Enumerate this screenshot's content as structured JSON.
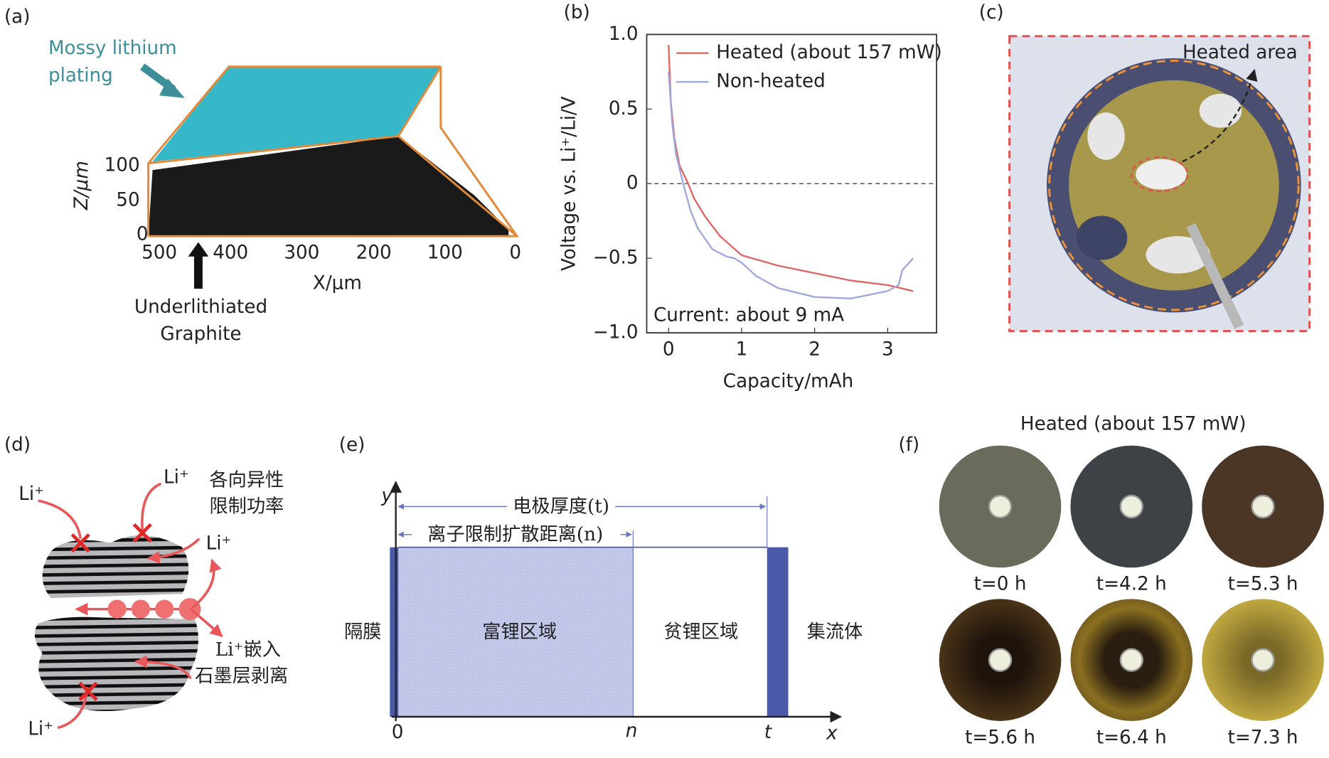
{
  "panel_a": {
    "label": "(a)",
    "annotation": [
      "Mossy lithium",
      "plating"
    ],
    "z_label": "Z/μm",
    "z_ticks": [
      100,
      50,
      0
    ],
    "x_ticks": [
      500,
      400,
      300,
      200,
      100,
      0
    ],
    "x_label": "X/μm",
    "arrow_label": [
      "Underlithiated",
      "Graphite"
    ]
  },
  "chart_data": {
    "type": "line",
    "panel_label": "(b)",
    "x_label": "Capacity/mAh",
    "y_label": "Voltage vs. Li⁺/Li/V",
    "annotation": "Current: about 9 mA",
    "xlim": [
      -0.3,
      3.67
    ],
    "ylim": [
      -1,
      1
    ],
    "xticks": [
      0,
      1,
      2,
      3
    ],
    "yticks": [
      {
        "value": 1,
        "label": "1.0"
      },
      {
        "value": 0.5,
        "label": "0.5"
      },
      0,
      {
        "value": -0.5,
        "label": "−0.5"
      },
      {
        "value": -1,
        "label": "−1.0"
      }
    ],
    "reference_line": 0,
    "legend": "upper right",
    "series": [
      {
        "name": "Heated (about 157 mW)",
        "color": "#e06666",
        "x": [
          0,
          0.03,
          0.08,
          0.15,
          0.25,
          0.35,
          0.5,
          0.7,
          1.0,
          1.5,
          2.0,
          2.5,
          3.0,
          3.35
        ],
        "values": [
          0.93,
          0.55,
          0.3,
          0.12,
          0.02,
          -0.1,
          -0.22,
          -0.35,
          -0.48,
          -0.55,
          -0.6,
          -0.65,
          -0.68,
          -0.72
        ]
      },
      {
        "name": "Non-heated",
        "color": "#a0a8dc",
        "x": [
          0,
          0.05,
          0.1,
          0.2,
          0.3,
          0.4,
          0.6,
          0.8,
          0.9,
          1.0,
          1.2,
          1.5,
          2.0,
          2.5,
          3.0,
          3.15,
          3.2,
          3.35
        ],
        "values": [
          0.75,
          0.4,
          0.2,
          0.0,
          -0.18,
          -0.3,
          -0.44,
          -0.49,
          -0.5,
          -0.53,
          -0.62,
          -0.7,
          -0.76,
          -0.77,
          -0.72,
          -0.68,
          -0.58,
          -0.5
        ]
      }
    ]
  },
  "panel_c": {
    "label": "(c)",
    "annotation": "Heated area"
  },
  "panel_d": {
    "label": "(d)",
    "ions": [
      "Li⁺",
      "Li⁺",
      "Li⁺",
      "Li⁺"
    ],
    "anisotropy": [
      "各向异性",
      "限制功率"
    ],
    "intercalation": "Li⁺嵌入",
    "exfoliation": "石墨层剥离"
  },
  "panel_e": {
    "label": "(e)",
    "y_axis": "y",
    "x_axis": "x",
    "thickness": "电极厚度(t)",
    "distance": "离子限制扩散距离(n)",
    "regions": [
      "隔膜",
      "富锂区域",
      "贫锂区域",
      "集流体"
    ],
    "x_marks": [
      "0",
      "n",
      "t"
    ]
  },
  "panel_f": {
    "label": "(f)",
    "title": "Heated (about 157 mW)",
    "captions": [
      "t=0 h",
      "t=4.2 h",
      "t=5.3 h",
      "t=5.6 h",
      "t=6.4 h",
      "t=7.3 h"
    ]
  }
}
